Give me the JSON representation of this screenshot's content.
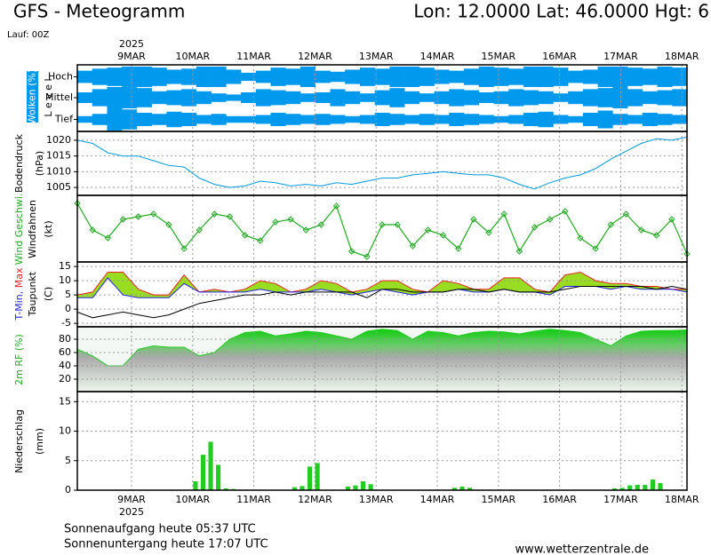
{
  "header": {
    "title": "GFS - Meteogramm",
    "location": "Lon: 12.0000 Lat: 46.0000 Hgt: 6",
    "run": "Lauf: 00Z"
  },
  "x_axis": {
    "year": "2025",
    "ticks": [
      "9MAR",
      "10MAR",
      "11MAR",
      "12MAR",
      "13MAR",
      "14MAR",
      "15MAR",
      "16MAR",
      "17MAR",
      "18MAR"
    ]
  },
  "chart_data": [
    {
      "type": "cloud",
      "ylabel": "Wolken (%)",
      "axis_label": "L e v e l",
      "color": "#0099ee",
      "series": [
        {
          "name": "Hoch",
          "values": [
            60,
            80,
            90,
            100,
            100,
            90,
            70,
            80,
            100,
            100,
            70,
            40,
            60,
            90,
            80,
            100,
            60,
            50,
            70,
            90,
            80,
            100,
            100,
            90,
            70,
            60,
            80,
            100,
            90,
            80,
            100,
            100,
            90,
            60,
            70,
            100,
            100,
            90,
            80,
            100,
            90
          ]
        },
        {
          "name": "Mittel",
          "values": [
            50,
            80,
            100,
            100,
            90,
            60,
            70,
            80,
            60,
            40,
            30,
            50,
            80,
            70,
            60,
            40,
            50,
            80,
            60,
            40,
            70,
            90,
            60,
            40,
            60,
            80,
            70,
            50,
            60,
            80,
            70,
            60,
            40,
            60,
            80,
            90,
            100,
            80,
            60,
            70,
            80
          ]
        },
        {
          "name": "Tief",
          "values": [
            30,
            50,
            100,
            90,
            60,
            50,
            70,
            60,
            40,
            50,
            30,
            30,
            40,
            60,
            50,
            40,
            50,
            40,
            30,
            40,
            60,
            50,
            40,
            50,
            40,
            60,
            50,
            40,
            30,
            40,
            60,
            70,
            40,
            30,
            60,
            80,
            50,
            40,
            60,
            50,
            40
          ]
        }
      ]
    },
    {
      "type": "line",
      "ylabel": "Bodendruck",
      "unit": "(hPa)",
      "color": "#0099dd",
      "ylim": [
        1002.5,
        1022.8
      ],
      "yticks": [
        1005,
        1010,
        1015,
        1020
      ],
      "grid": true,
      "values": [
        1020,
        1019,
        1016,
        1015,
        1015,
        1013.5,
        1012,
        1011.5,
        1008,
        1006,
        1005,
        1005.5,
        1007,
        1006.5,
        1005.5,
        1006,
        1005.5,
        1006.5,
        1006,
        1007,
        1008,
        1008,
        1009,
        1009.5,
        1010,
        1009.5,
        1009,
        1009,
        1008,
        1006,
        1004.5,
        1006.5,
        1008,
        1009,
        1011,
        1014,
        1016.5,
        1019,
        1020.5,
        1020,
        1021
      ]
    },
    {
      "type": "wind",
      "label": "Windfahnen",
      "unit": "(kt)",
      "ylim": [
        0,
        25
      ],
      "series": [
        {
          "name": "Wind Geschwi.",
          "color": "#22aa22",
          "values": [
            22,
            12,
            9,
            16,
            17,
            18,
            14,
            5,
            12,
            18,
            17,
            10,
            8,
            15,
            16,
            12,
            14,
            21,
            4,
            2,
            14,
            14,
            6,
            12,
            10,
            5,
            16,
            11,
            18,
            4,
            13,
            16,
            19,
            9,
            5,
            14,
            18,
            12,
            10,
            16,
            3
          ]
        }
      ]
    },
    {
      "type": "temp",
      "label": "Taupunkt",
      "unit": "(C)",
      "fill": "#99dd22",
      "ylim": [
        -6.2,
        16.6
      ],
      "yticks": [
        -5,
        0,
        5,
        10,
        15
      ],
      "grid": true,
      "series": [
        {
          "name": "Max",
          "color": "#ee2222",
          "values": [
            5,
            6,
            13,
            13,
            7,
            5,
            5,
            12,
            6,
            7,
            6,
            7,
            10,
            9,
            6,
            7,
            10,
            9,
            6,
            7,
            10,
            10,
            7,
            6,
            10,
            9,
            7,
            7,
            11,
            11,
            7,
            6,
            12,
            13,
            10,
            9,
            9,
            8,
            8,
            7,
            7
          ]
        },
        {
          "name": "T-Min,",
          "color": "#2222ee",
          "values": [
            4,
            4,
            11,
            5,
            4,
            4,
            4,
            9,
            6,
            6,
            6,
            6,
            7,
            6,
            6,
            6,
            7,
            6,
            5,
            6,
            7,
            6,
            5,
            6,
            6,
            7,
            6,
            6,
            7,
            6,
            6,
            5,
            8,
            8,
            8,
            7,
            8,
            7,
            7,
            7,
            6
          ]
        },
        {
          "name": "Taupunkt",
          "color": "#000000",
          "values": [
            -1,
            -3,
            -2,
            -1,
            -2,
            -3,
            -2,
            0,
            2,
            3,
            4,
            5,
            5,
            6,
            5,
            6,
            6,
            6,
            6,
            4,
            7,
            7,
            6,
            6,
            6,
            7,
            7,
            6,
            7,
            6,
            6,
            6,
            7,
            8,
            8,
            8,
            8,
            8,
            7,
            8,
            7
          ]
        }
      ]
    },
    {
      "type": "area",
      "ylabel": "2m RF (%)",
      "color": "#22cc22",
      "ylim": [
        1.3,
        98.7
      ],
      "yticks": [
        20,
        40,
        60,
        80
      ],
      "grid": true,
      "values": [
        65,
        55,
        40,
        40,
        65,
        70,
        68,
        68,
        55,
        60,
        80,
        90,
        92,
        85,
        88,
        92,
        90,
        85,
        80,
        92,
        95,
        93,
        80,
        92,
        90,
        85,
        90,
        92,
        91,
        88,
        92,
        95,
        93,
        90,
        80,
        70,
        85,
        92,
        93,
        93,
        94
      ]
    },
    {
      "type": "bar",
      "ylabel": "Niederschlag",
      "unit": "(mm)",
      "color": "#22cc22",
      "ylim": [
        0,
        16.7
      ],
      "yticks": [
        0,
        5,
        10,
        15
      ],
      "grid": true,
      "values": [
        0,
        0,
        0,
        0,
        0,
        0,
        0,
        0,
        0,
        0,
        0,
        0,
        0,
        0,
        0,
        1.5,
        6,
        8.2,
        4.3,
        0.3,
        0.2,
        0,
        0,
        0,
        0,
        0,
        0,
        0,
        0.5,
        0.7,
        4,
        4.6,
        0,
        0,
        0,
        0.6,
        0.8,
        1.5,
        1,
        0,
        0,
        0,
        0,
        0,
        0,
        0,
        0,
        0,
        0,
        0.4,
        0.6,
        0.4,
        0,
        0,
        0,
        0,
        0,
        0,
        0,
        0,
        0,
        0,
        0,
        0,
        0,
        0,
        0,
        0,
        0,
        0,
        0.3,
        0.4,
        0.8,
        0.9,
        0.9,
        1.8,
        1.2,
        0,
        0,
        0
      ]
    }
  ],
  "footer": {
    "sunrise": "Sonnenaufgang heute 05:37 UTC",
    "sunset": "Sonnenuntergang heute 17:07 UTC",
    "source": "www.wetterzentrale.de"
  }
}
